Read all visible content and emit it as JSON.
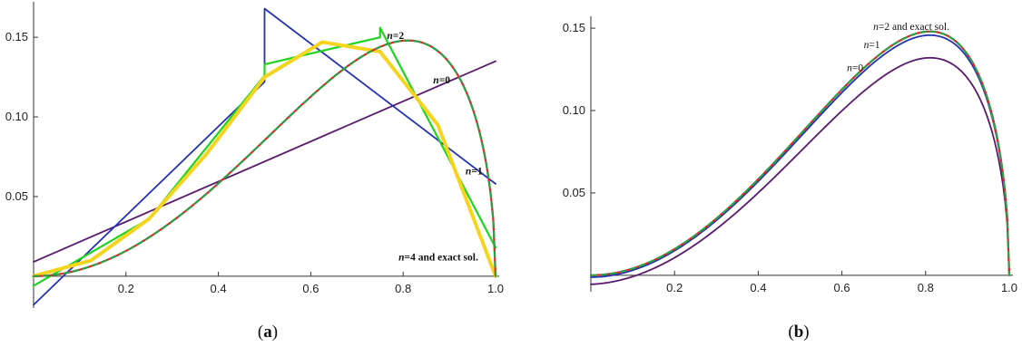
{
  "chart_data": [
    {
      "type": "line",
      "caption": {
        "prefix": "(",
        "letter": "a",
        "suffix": ")"
      },
      "xlim": [
        0,
        1.0
      ],
      "ylim": [
        -0.02,
        0.17
      ],
      "xticks": [
        {
          "value": 0.2,
          "label": "0.2"
        },
        {
          "value": 0.4,
          "label": "0.4"
        },
        {
          "value": 0.6,
          "label": "0.6"
        },
        {
          "value": 0.8,
          "label": "0.8"
        },
        {
          "value": 1.0,
          "label": "1.0"
        }
      ],
      "yticks": [
        {
          "value": 0.05,
          "label": "0.05"
        },
        {
          "value": 0.1,
          "label": "0.10"
        },
        {
          "value": 0.15,
          "label": "0.15"
        }
      ],
      "series": [
        {
          "id": "n0",
          "color": "#5a1a6e",
          "width": 1.8,
          "points": [
            [
              0,
              0.009
            ],
            [
              1.0,
              0.135
            ]
          ]
        },
        {
          "id": "n1",
          "color": "#2434b0",
          "width": 1.8,
          "points": [
            [
              0,
              -0.018
            ],
            [
              0.5,
              0.122
            ],
            [
              0.5,
              0.168
            ],
            [
              1.0,
              0.058
            ]
          ]
        },
        {
          "id": "n2",
          "color": "#1ed41e",
          "width": 2.2,
          "points": [
            [
              0,
              -0.006
            ],
            [
              0.25,
              0.036
            ],
            [
              0.5,
              0.126
            ],
            [
              0.5,
              0.133
            ],
            [
              0.75,
              0.15
            ],
            [
              0.75,
              0.156
            ],
            [
              1.0,
              0.018
            ]
          ]
        },
        {
          "id": "n3",
          "color": "#f5d41e",
          "width": 4,
          "points": [
            [
              0,
              0
            ],
            [
              0.125,
              0.01
            ],
            [
              0.25,
              0.036
            ],
            [
              0.375,
              0.077
            ],
            [
              0.5,
              0.125
            ],
            [
              0.625,
              0.147
            ],
            [
              0.75,
              0.141
            ],
            [
              0.875,
              0.095
            ],
            [
              1.0,
              0
            ]
          ]
        },
        {
          "id": "exact",
          "color": "#e8231e",
          "width": 2.2,
          "exact": true
        },
        {
          "id": "n4",
          "color": "#2aa048",
          "width": 2.2,
          "dash": "6,5",
          "exact": true
        }
      ],
      "annotations": [
        {
          "text": "n=2",
          "x": 0.765,
          "y": 0.149,
          "bold": true
        },
        {
          "text": "n=0",
          "x": 0.865,
          "y": 0.121,
          "bold": true
        },
        {
          "text": "n=1",
          "x": 0.935,
          "y": 0.064,
          "bold": true
        },
        {
          "text": "n=4 and exact sol.",
          "x": 0.79,
          "y": 0.01,
          "bold": true
        }
      ]
    },
    {
      "type": "line",
      "caption": {
        "prefix": "(",
        "letter": "b",
        "suffix": ")"
      },
      "xlim": [
        0,
        1.0
      ],
      "ylim": [
        -0.01,
        0.155
      ],
      "xticks": [
        {
          "value": 0.2,
          "label": "0.2"
        },
        {
          "value": 0.4,
          "label": "0.4"
        },
        {
          "value": 0.6,
          "label": "0.6"
        },
        {
          "value": 0.8,
          "label": "0.8"
        },
        {
          "value": 1.0,
          "label": "1.0"
        }
      ],
      "yticks": [
        {
          "value": 0.05,
          "label": "0.05"
        },
        {
          "value": 0.1,
          "label": "0.10"
        },
        {
          "value": 0.15,
          "label": "0.15"
        }
      ],
      "series": [
        {
          "id": "n0",
          "color": "#5a1a6e",
          "width": 1.8,
          "scale": 0.893,
          "offset": -0.0055
        },
        {
          "id": "n1",
          "color": "#2434b0",
          "width": 1.8,
          "scale": 0.985,
          "offset": -0.0012
        },
        {
          "id": "exact",
          "color": "#e8231e",
          "width": 2.2,
          "scale": 1.0,
          "offset": 0
        },
        {
          "id": "n2",
          "color": "#2aa048",
          "width": 2.2,
          "dash": "6,5",
          "scale": 1.0,
          "offset": 0
        }
      ],
      "annotations": [
        {
          "text": "n=2 and exact sol.",
          "x": 0.675,
          "y": 0.149,
          "bold": false
        },
        {
          "text": "n=1",
          "x": 0.652,
          "y": 0.138,
          "bold": false
        },
        {
          "text": "n=0",
          "x": 0.612,
          "y": 0.124,
          "bold": false
        }
      ]
    }
  ]
}
